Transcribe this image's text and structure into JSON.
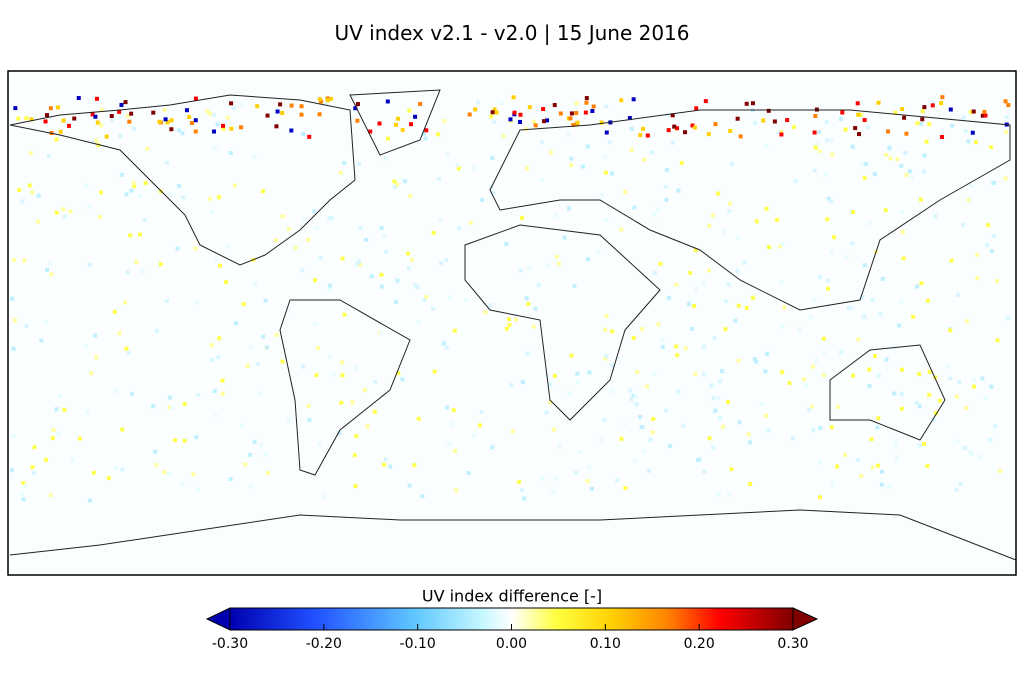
{
  "title": "UV index v2.1 - v2.0  |  15 June 2016",
  "colorbar": {
    "label": "UV index difference  [-]",
    "lim": [
      -0.3,
      0.3
    ],
    "ticks": [
      {
        "value": -0.3,
        "label": "-0.30"
      },
      {
        "value": -0.2,
        "label": "-0.20"
      },
      {
        "value": -0.1,
        "label": "-0.10"
      },
      {
        "value": 0,
        "label": "0.00"
      },
      {
        "value": 0.1,
        "label": "0.10"
      },
      {
        "value": 0.2,
        "label": "0.20"
      },
      {
        "value": 0.3,
        "label": "0.30"
      }
    ]
  }
}
